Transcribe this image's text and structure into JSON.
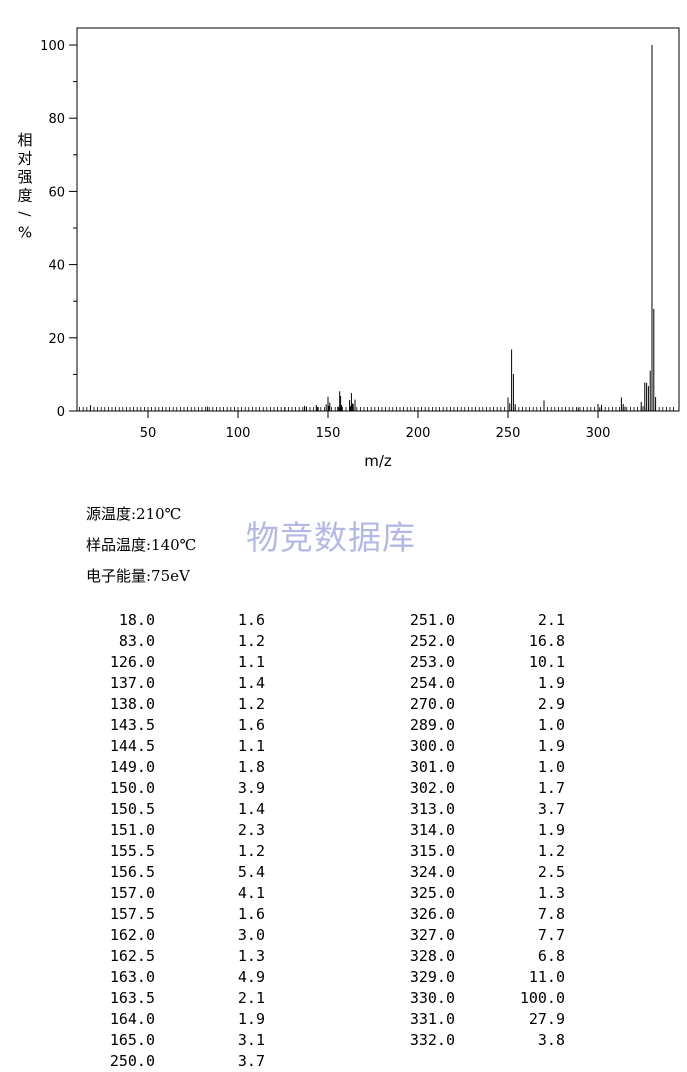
{
  "chart_data": {
    "type": "bar",
    "title": "",
    "xlabel": "m/z",
    "ylabel": "相对强度/%",
    "xlim": [
      10,
      342
    ],
    "ylim": [
      0,
      100
    ],
    "xticks": [
      50,
      100,
      150,
      200,
      250,
      300
    ],
    "yticks": [
      0,
      20,
      40,
      60,
      80,
      100
    ],
    "grid": false,
    "peaks": [
      {
        "mz": 18.0,
        "intensity": 1.6
      },
      {
        "mz": 83.0,
        "intensity": 1.2
      },
      {
        "mz": 126.0,
        "intensity": 1.1
      },
      {
        "mz": 137.0,
        "intensity": 1.4
      },
      {
        "mz": 138.0,
        "intensity": 1.2
      },
      {
        "mz": 143.5,
        "intensity": 1.6
      },
      {
        "mz": 144.5,
        "intensity": 1.1
      },
      {
        "mz": 149.0,
        "intensity": 1.8
      },
      {
        "mz": 150.0,
        "intensity": 3.9
      },
      {
        "mz": 150.5,
        "intensity": 1.4
      },
      {
        "mz": 151.0,
        "intensity": 2.3
      },
      {
        "mz": 155.5,
        "intensity": 1.2
      },
      {
        "mz": 156.5,
        "intensity": 5.4
      },
      {
        "mz": 157.0,
        "intensity": 4.1
      },
      {
        "mz": 157.5,
        "intensity": 1.6
      },
      {
        "mz": 162.0,
        "intensity": 3.0
      },
      {
        "mz": 162.5,
        "intensity": 1.3
      },
      {
        "mz": 163.0,
        "intensity": 4.9
      },
      {
        "mz": 163.5,
        "intensity": 2.1
      },
      {
        "mz": 164.0,
        "intensity": 1.9
      },
      {
        "mz": 165.0,
        "intensity": 3.1
      },
      {
        "mz": 250.0,
        "intensity": 3.7
      },
      {
        "mz": 251.0,
        "intensity": 2.1
      },
      {
        "mz": 252.0,
        "intensity": 16.8
      },
      {
        "mz": 253.0,
        "intensity": 10.1
      },
      {
        "mz": 254.0,
        "intensity": 1.9
      },
      {
        "mz": 270.0,
        "intensity": 2.9
      },
      {
        "mz": 289.0,
        "intensity": 1.0
      },
      {
        "mz": 300.0,
        "intensity": 1.9
      },
      {
        "mz": 301.0,
        "intensity": 1.0
      },
      {
        "mz": 302.0,
        "intensity": 1.7
      },
      {
        "mz": 313.0,
        "intensity": 3.7
      },
      {
        "mz": 314.0,
        "intensity": 1.9
      },
      {
        "mz": 315.0,
        "intensity": 1.2
      },
      {
        "mz": 324.0,
        "intensity": 2.5
      },
      {
        "mz": 325.0,
        "intensity": 1.3
      },
      {
        "mz": 326.0,
        "intensity": 7.8
      },
      {
        "mz": 327.0,
        "intensity": 7.7
      },
      {
        "mz": 328.0,
        "intensity": 6.8
      },
      {
        "mz": 329.0,
        "intensity": 11.0
      },
      {
        "mz": 330.0,
        "intensity": 100.0
      },
      {
        "mz": 331.0,
        "intensity": 27.9
      },
      {
        "mz": 332.0,
        "intensity": 3.8
      }
    ]
  },
  "conditions": {
    "source_temp": "源温度:210℃",
    "sample_temp": "样品温度:140℃",
    "electron_energy": "电子能量:75eV"
  },
  "watermark": "物竞数据库",
  "table_left": [
    [
      "18.0",
      "1.6"
    ],
    [
      "83.0",
      "1.2"
    ],
    [
      "126.0",
      "1.1"
    ],
    [
      "137.0",
      "1.4"
    ],
    [
      "138.0",
      "1.2"
    ],
    [
      "143.5",
      "1.6"
    ],
    [
      "144.5",
      "1.1"
    ],
    [
      "149.0",
      "1.8"
    ],
    [
      "150.0",
      "3.9"
    ],
    [
      "150.5",
      "1.4"
    ],
    [
      "151.0",
      "2.3"
    ],
    [
      "155.5",
      "1.2"
    ],
    [
      "156.5",
      "5.4"
    ],
    [
      "157.0",
      "4.1"
    ],
    [
      "157.5",
      "1.6"
    ],
    [
      "162.0",
      "3.0"
    ],
    [
      "162.5",
      "1.3"
    ],
    [
      "163.0",
      "4.9"
    ],
    [
      "163.5",
      "2.1"
    ],
    [
      "164.0",
      "1.9"
    ],
    [
      "165.0",
      "3.1"
    ],
    [
      "250.0",
      "3.7"
    ]
  ],
  "table_right": [
    [
      "251.0",
      "2.1"
    ],
    [
      "252.0",
      "16.8"
    ],
    [
      "253.0",
      "10.1"
    ],
    [
      "254.0",
      "1.9"
    ],
    [
      "270.0",
      "2.9"
    ],
    [
      "289.0",
      "1.0"
    ],
    [
      "300.0",
      "1.9"
    ],
    [
      "301.0",
      "1.0"
    ],
    [
      "302.0",
      "1.7"
    ],
    [
      "313.0",
      "3.7"
    ],
    [
      "314.0",
      "1.9"
    ],
    [
      "315.0",
      "1.2"
    ],
    [
      "324.0",
      "2.5"
    ],
    [
      "325.0",
      "1.3"
    ],
    [
      "326.0",
      "7.8"
    ],
    [
      "327.0",
      "7.7"
    ],
    [
      "328.0",
      "6.8"
    ],
    [
      "329.0",
      "11.0"
    ],
    [
      "330.0",
      "100.0"
    ],
    [
      "331.0",
      "27.9"
    ],
    [
      "332.0",
      "3.8"
    ]
  ]
}
